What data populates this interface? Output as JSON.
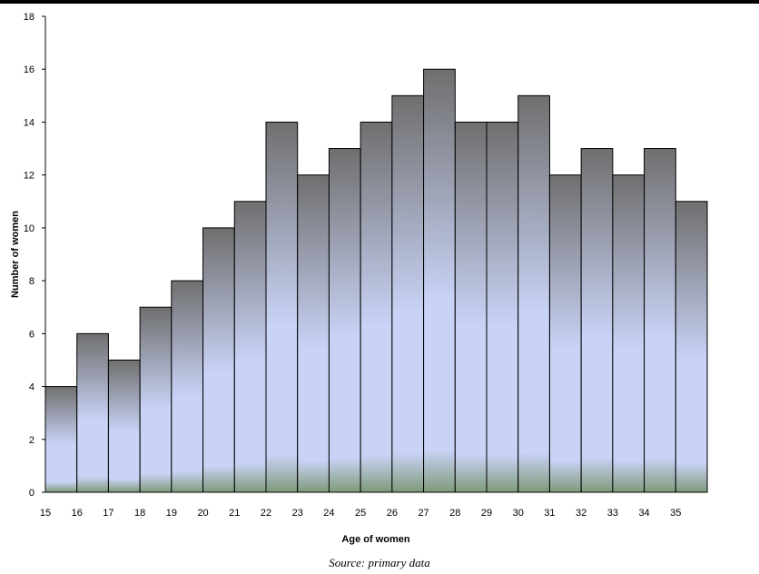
{
  "chart_data": {
    "type": "bar",
    "title": "",
    "xlabel": "Age of women",
    "ylabel": "Number of women",
    "ylim": [
      0,
      18
    ],
    "y_ticks": [
      0,
      2,
      4,
      6,
      8,
      10,
      12,
      14,
      16,
      18
    ],
    "x_tick_labels": [
      "15",
      "16",
      "17",
      "18",
      "19",
      "20",
      "21",
      "22",
      "23",
      "24",
      "25",
      "26",
      "27",
      "28",
      "29",
      "30",
      "31",
      "32",
      "33",
      "34",
      "35"
    ],
    "values": [
      4,
      6,
      5,
      7,
      8,
      10,
      11,
      14,
      12,
      13,
      14,
      15,
      16,
      14,
      14,
      15,
      12,
      13,
      12,
      13,
      11
    ],
    "grid": false,
    "bar_gradient": {
      "top": "#6f6f6f",
      "middle": "#c9d3f6",
      "bottom": "#7f9a7a"
    }
  },
  "footer": {
    "source": "Source: primary data"
  }
}
